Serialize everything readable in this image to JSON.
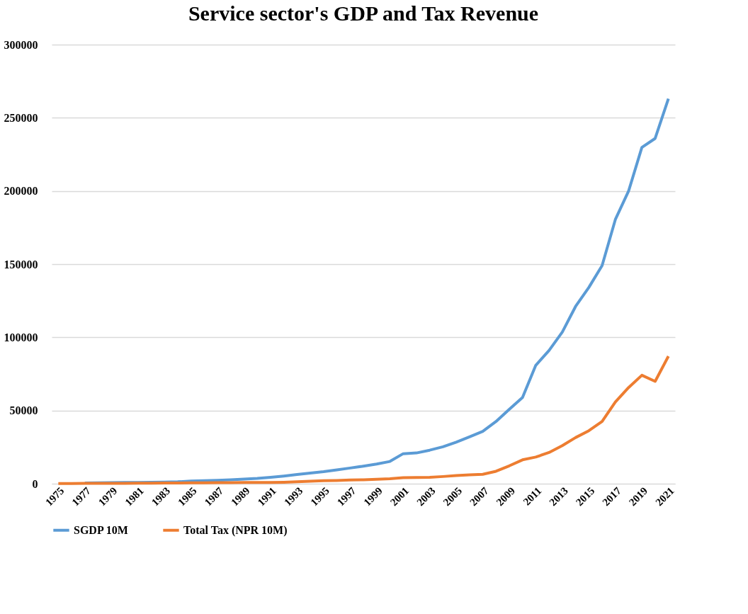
{
  "chart_data": {
    "type": "line",
    "title": "Service sector's GDP and Tax Revenue",
    "categories": [
      "1975",
      null,
      "1977",
      null,
      "1979",
      null,
      "1981",
      null,
      "1983",
      null,
      "1985",
      null,
      "1987",
      null,
      "1989",
      null,
      "1991",
      null,
      "1993",
      null,
      "1995",
      null,
      "1997",
      null,
      "1999",
      null,
      "2001",
      null,
      "2003",
      null,
      "2005",
      null,
      "2007",
      null,
      "2009",
      null,
      "2011",
      null,
      "2013",
      null,
      "2015",
      null,
      "2017",
      null,
      "2019",
      null,
      "2021"
    ],
    "series": [
      {
        "name": "SGDP 10M",
        "color": "#5b9bd5",
        "values": [
          null,
          null,
          500,
          600,
          700,
          800,
          900,
          1000,
          1100,
          1300,
          1800,
          2000,
          2300,
          2700,
          3200,
          3600,
          4300,
          5200,
          6300,
          7300,
          8200,
          9400,
          10700,
          12000,
          13400,
          15200,
          20500,
          21000,
          22900,
          25200,
          28400,
          32000,
          35700,
          42500,
          50800,
          58900,
          80900,
          91000,
          103600,
          121100,
          134100,
          149000,
          180500,
          200000,
          229800,
          235900,
          263100
        ]
      },
      {
        "name": "Total Tax (NPR 10M)",
        "color": "#ed7d31",
        "values": [
          100,
          100,
          200,
          200,
          300,
          300,
          400,
          400,
          500,
          500,
          600,
          600,
          700,
          700,
          800,
          800,
          900,
          1000,
          1300,
          1700,
          2000,
          2200,
          2500,
          2700,
          3000,
          3400,
          4100,
          4200,
          4400,
          4900,
          5600,
          6000,
          6400,
          8500,
          12200,
          16300,
          18200,
          21300,
          26000,
          31500,
          36200,
          42500,
          55800,
          65700,
          74100,
          69900,
          87100
        ]
      }
    ],
    "ylim": [
      0,
      300000
    ],
    "yticks": [
      0,
      50000,
      100000,
      150000,
      200000,
      250000,
      300000
    ],
    "grid": "y",
    "legend": "bottom",
    "marker": "none",
    "line_style": "solid"
  }
}
